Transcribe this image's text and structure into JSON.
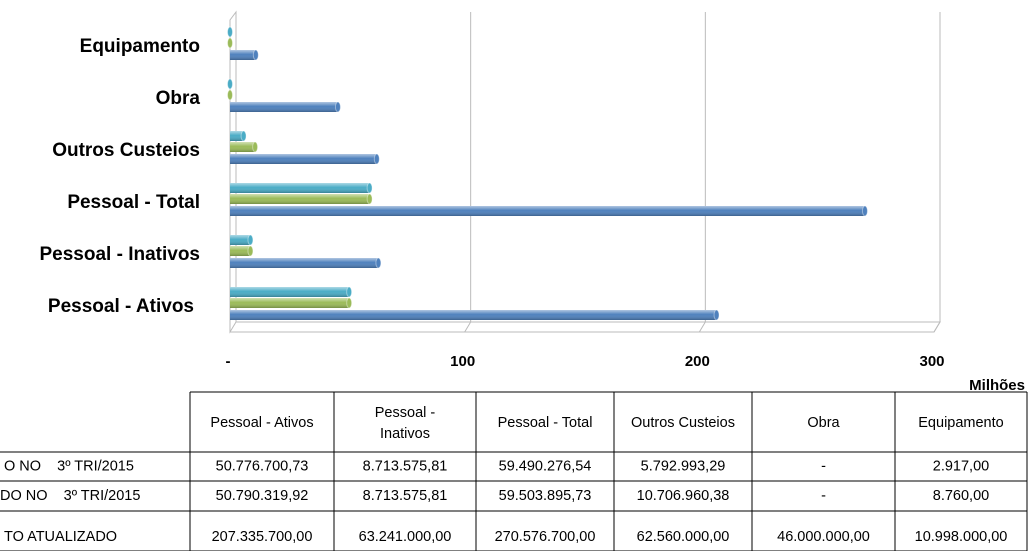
{
  "chart_data": {
    "type": "hbar",
    "categories": [
      "Pessoal - Ativos",
      "Pessoal - Inativos",
      "Pessoal - Total",
      "Outros Custeios",
      "Obra",
      "Equipamento"
    ],
    "series": [
      {
        "name": "O NO    3º TRI/2015",
        "color": "#4bacc6",
        "values": [
          50.77670073,
          8.71357581,
          59.49027654,
          5.79299329,
          0,
          0.002917
        ],
        "value_labels": [
          "50.776.700,73",
          "8.713.575,81",
          "59.490.276,54",
          "5.792.993,29",
          "-",
          "2.917,00"
        ]
      },
      {
        "name": "DO NO    3º TRI/2015",
        "color": "#9bbb59",
        "values": [
          50.79031992,
          8.71357581,
          59.50389573,
          10.70696038,
          0,
          0.00876
        ],
        "value_labels": [
          "50.790.319,92",
          "8.713.575,81",
          "59.503.895,73",
          "10.706.960,38",
          "-",
          "8.760,00"
        ]
      },
      {
        "name": "TO ATUALIZADO",
        "color": "#4f81bd",
        "values": [
          207.3357,
          63.241,
          270.5767,
          62.56,
          46,
          10.998
        ],
        "value_labels": [
          "207.335.700,00",
          "63.241.000,00",
          "270.576.700,00",
          "62.560.000,00",
          "46.000.000,00",
          "10.998.000,00"
        ]
      }
    ],
    "xlim": [
      0,
      300
    ],
    "xticks": [
      {
        "value": 0,
        "label": "-"
      },
      100,
      200,
      300
    ],
    "display_unit": "Milhões",
    "grid": true
  }
}
